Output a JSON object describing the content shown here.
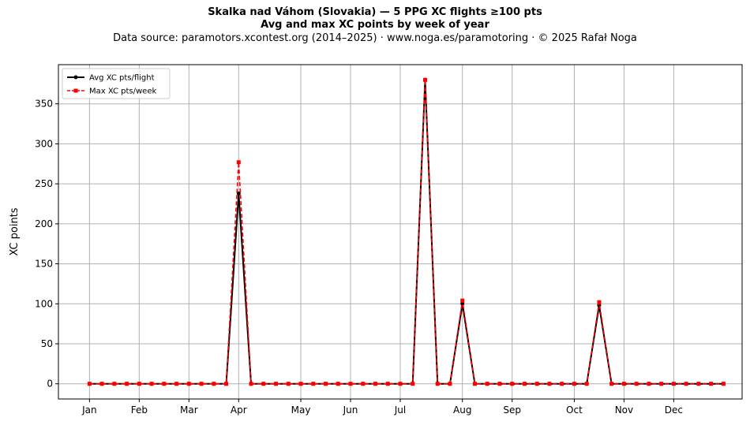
{
  "chart_data": {
    "type": "line",
    "title": "Skalka nad Váhom (Slovakia)  —  5 PPG XC flights ≥100 pts",
    "subtitle": "Avg and max XC points by week of year",
    "source": "Data source: paramotors.xcontest.org (2014–2025)  ·  www.noga.es/paramotoring  ·  © 2025 Rafał Noga",
    "xlabel": "",
    "ylabel": "XC points",
    "xlim": [
      -1.5,
      53.5
    ],
    "ylim": [
      -19,
      399
    ],
    "yticks": [
      0,
      50,
      100,
      150,
      200,
      250,
      300,
      350
    ],
    "month_ticks": [
      {
        "label": "Jan",
        "week": 1
      },
      {
        "label": "Feb",
        "week": 5
      },
      {
        "label": "Mar",
        "week": 9
      },
      {
        "label": "Apr",
        "week": 13
      },
      {
        "label": "May",
        "week": 18
      },
      {
        "label": "Jun",
        "week": 22
      },
      {
        "label": "Jul",
        "week": 26
      },
      {
        "label": "Aug",
        "week": 31
      },
      {
        "label": "Sep",
        "week": 35
      },
      {
        "label": "Oct",
        "week": 40
      },
      {
        "label": "Nov",
        "week": 44
      },
      {
        "label": "Dec",
        "week": 48
      }
    ],
    "x": [
      1,
      2,
      3,
      4,
      5,
      6,
      7,
      8,
      9,
      10,
      11,
      12,
      13,
      14,
      15,
      16,
      17,
      18,
      19,
      20,
      21,
      22,
      23,
      24,
      25,
      26,
      27,
      28,
      29,
      30,
      31,
      32,
      33,
      34,
      35,
      36,
      37,
      38,
      39,
      40,
      41,
      42,
      43,
      44,
      45,
      46,
      47,
      48,
      49,
      50,
      51,
      52
    ],
    "series": [
      {
        "name": "Avg XC pts/flight",
        "color": "#000000",
        "style": "solid-circle",
        "values": [
          0,
          0,
          0,
          0,
          0,
          0,
          0,
          0,
          0,
          0,
          0,
          0,
          238,
          0,
          0,
          0,
          0,
          0,
          0,
          0,
          0,
          0,
          0,
          0,
          0,
          0,
          0,
          380,
          0,
          0,
          100,
          0,
          0,
          0,
          0,
          0,
          0,
          0,
          0,
          0,
          0,
          98,
          0,
          0,
          0,
          0,
          0,
          0,
          0,
          0,
          0,
          0
        ]
      },
      {
        "name": "Max XC pts/week",
        "color": "#ff0000",
        "style": "dashed-square",
        "values": [
          0,
          0,
          0,
          0,
          0,
          0,
          0,
          0,
          0,
          0,
          0,
          0,
          277,
          0,
          0,
          0,
          0,
          0,
          0,
          0,
          0,
          0,
          0,
          0,
          0,
          0,
          0,
          380,
          0,
          0,
          104,
          0,
          0,
          0,
          0,
          0,
          0,
          0,
          0,
          0,
          0,
          102,
          0,
          0,
          0,
          0,
          0,
          0,
          0,
          0,
          0,
          0
        ]
      }
    ],
    "grid": true,
    "legend_position": "top-left"
  }
}
